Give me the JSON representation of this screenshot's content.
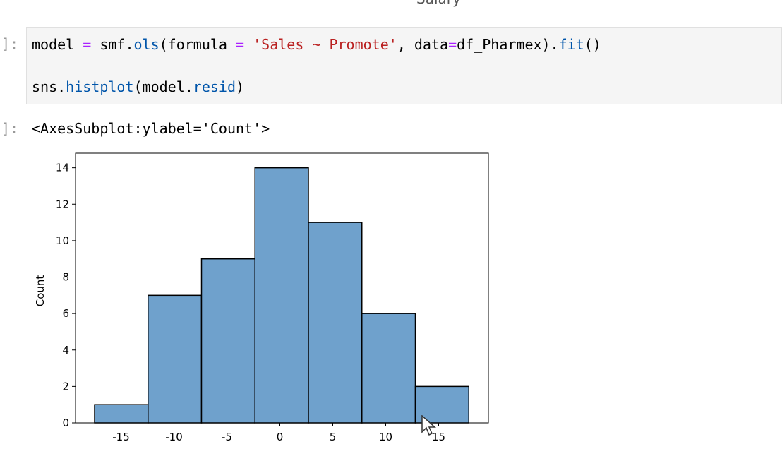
{
  "header": {
    "title_fragment": "Salary"
  },
  "cells": [
    {
      "prompt": "]:",
      "lines": [
        [
          {
            "text": "model ",
            "color": "#000000"
          },
          {
            "text": "=",
            "color": "#aa22ff"
          },
          {
            "text": " smf.",
            "color": "#000000"
          },
          {
            "text": "ols",
            "color": "#0055aa"
          },
          {
            "text": "(formula ",
            "color": "#000000"
          },
          {
            "text": "=",
            "color": "#aa22ff"
          },
          {
            "text": " ",
            "color": "#000000"
          },
          {
            "text": "'Sales ~ Promote'",
            "color": "#ba2121"
          },
          {
            "text": ", data",
            "color": "#000000"
          },
          {
            "text": "=",
            "color": "#aa22ff"
          },
          {
            "text": "df_Pharmex).",
            "color": "#000000"
          },
          {
            "text": "fit",
            "color": "#0055aa"
          },
          {
            "text": "()",
            "color": "#000000"
          }
        ],
        [
          {
            "text": "sns.",
            "color": "#000000"
          },
          {
            "text": "histplot",
            "color": "#0055aa"
          },
          {
            "text": "(model.",
            "color": "#000000"
          },
          {
            "text": "resid",
            "color": "#0055aa"
          },
          {
            "text": ")",
            "color": "#000000"
          }
        ]
      ]
    }
  ],
  "output": {
    "prompt": "]:",
    "text": "<AxesSubplot:ylabel='Count'>"
  },
  "chart_data": {
    "type": "histogram",
    "ylabel": "Count",
    "bins": [
      -17.5,
      -12.45,
      -7.4,
      -2.35,
      2.7,
      7.75,
      12.8,
      17.85
    ],
    "values": [
      1,
      7,
      9,
      14,
      11,
      6,
      2
    ],
    "color": "#6fa1cc",
    "xlim": [
      -19.3,
      19.7
    ],
    "ylim": [
      0,
      14.8
    ],
    "xticks": [
      -15,
      -10,
      -5,
      0,
      5,
      10,
      15
    ],
    "yticks": [
      0,
      2,
      4,
      6,
      8,
      10,
      12,
      14
    ]
  }
}
